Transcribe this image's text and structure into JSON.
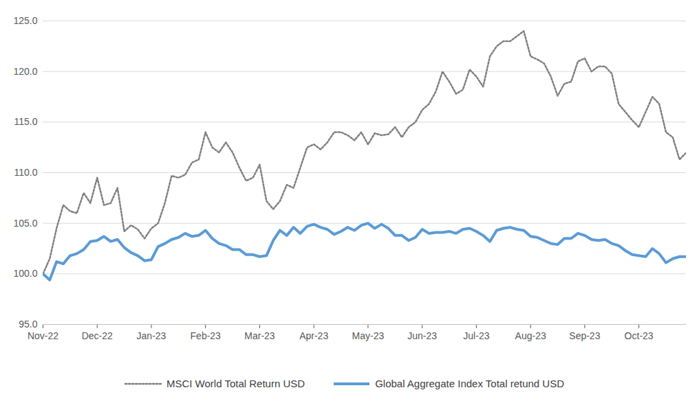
{
  "chart_data": {
    "type": "line",
    "categories": [
      "Nov-22",
      null,
      null,
      null,
      null,
      null,
      null,
      null,
      "Dec-22",
      null,
      null,
      null,
      null,
      null,
      null,
      null,
      "Jan-23",
      null,
      null,
      null,
      null,
      null,
      null,
      null,
      "Feb-23",
      null,
      null,
      null,
      null,
      null,
      null,
      null,
      "Mar-23",
      null,
      null,
      null,
      null,
      null,
      null,
      null,
      "Apr-23",
      null,
      null,
      null,
      null,
      null,
      null,
      null,
      "May-23",
      null,
      null,
      null,
      null,
      null,
      null,
      null,
      "Jun-23",
      null,
      null,
      null,
      null,
      null,
      null,
      null,
      "Jul-23",
      null,
      null,
      null,
      null,
      null,
      null,
      null,
      "Aug-23",
      null,
      null,
      null,
      null,
      null,
      null,
      null,
      "Sep-23",
      null,
      null,
      null,
      null,
      null,
      null,
      null,
      "Oct-23",
      null,
      null,
      null,
      null,
      null,
      null,
      null
    ],
    "series": [
      {
        "name": "MSCI World Total Return USD",
        "color": "#7f7f7f",
        "line_style": "dotted",
        "values": [
          100.0,
          101.5,
          104.5,
          106.8,
          106.2,
          106.0,
          108.0,
          107.0,
          109.5,
          106.8,
          107.0,
          108.5,
          104.2,
          104.8,
          104.4,
          103.5,
          104.5,
          105.0,
          107.0,
          109.7,
          109.5,
          109.8,
          111.0,
          111.3,
          114.0,
          112.5,
          112.0,
          113.0,
          112.0,
          110.5,
          109.2,
          109.5,
          110.8,
          107.2,
          106.4,
          107.2,
          108.8,
          108.5,
          110.5,
          112.5,
          112.8,
          112.3,
          113.0,
          114.0,
          114.0,
          113.7,
          113.2,
          114.0,
          112.8,
          113.9,
          113.7,
          113.8,
          114.5,
          113.5,
          114.5,
          115.0,
          116.2,
          116.8,
          118.0,
          120.0,
          119.0,
          117.8,
          118.2,
          120.2,
          119.5,
          118.5,
          121.5,
          122.5,
          123.0,
          123.0,
          123.5,
          124.0,
          121.5,
          121.2,
          120.8,
          119.5,
          117.6,
          118.8,
          119.0,
          121.0,
          121.3,
          120.0,
          120.5,
          120.5,
          119.8,
          116.8,
          116.0,
          115.2,
          114.5,
          116.0,
          117.5,
          116.8,
          114.0,
          113.5,
          111.3,
          112.0
        ]
      },
      {
        "name": "Global Aggregate Index Total retund USD",
        "color": "#5b9bd5",
        "line_style": "solid",
        "values": [
          100.0,
          99.4,
          101.2,
          101.0,
          101.8,
          102.0,
          102.4,
          103.2,
          103.3,
          103.7,
          103.2,
          103.4,
          102.6,
          102.1,
          101.8,
          101.3,
          101.4,
          102.7,
          103.0,
          103.4,
          103.6,
          104.0,
          103.7,
          103.8,
          104.3,
          103.5,
          103.0,
          102.8,
          102.4,
          102.4,
          101.9,
          101.9,
          101.7,
          101.8,
          103.3,
          104.3,
          103.8,
          104.6,
          104.0,
          104.7,
          104.9,
          104.6,
          104.4,
          103.9,
          104.2,
          104.6,
          104.3,
          104.8,
          105.0,
          104.5,
          104.9,
          104.5,
          103.8,
          103.8,
          103.3,
          103.6,
          104.4,
          104.0,
          104.1,
          104.1,
          104.2,
          104.0,
          104.4,
          104.5,
          104.2,
          103.8,
          103.2,
          104.3,
          104.5,
          104.6,
          104.4,
          104.3,
          103.7,
          103.6,
          103.3,
          103.0,
          102.9,
          103.5,
          103.5,
          104.0,
          103.8,
          103.4,
          103.3,
          103.4,
          103.0,
          102.8,
          102.3,
          101.9,
          101.8,
          101.7,
          102.5,
          102.0,
          101.1,
          101.5,
          101.7,
          101.7
        ]
      }
    ],
    "ylim": [
      95,
      125
    ],
    "yticks": [
      {
        "value": 95,
        "label": "95.0"
      },
      {
        "value": 100,
        "label": "100.0"
      },
      {
        "value": 105,
        "label": "105.0"
      },
      {
        "value": 110,
        "label": "110.0"
      },
      {
        "value": 115,
        "label": "115.0"
      },
      {
        "value": 120,
        "label": "120.0"
      },
      {
        "value": 125,
        "label": "125.0"
      }
    ],
    "grid": true,
    "legend": "bottom"
  }
}
